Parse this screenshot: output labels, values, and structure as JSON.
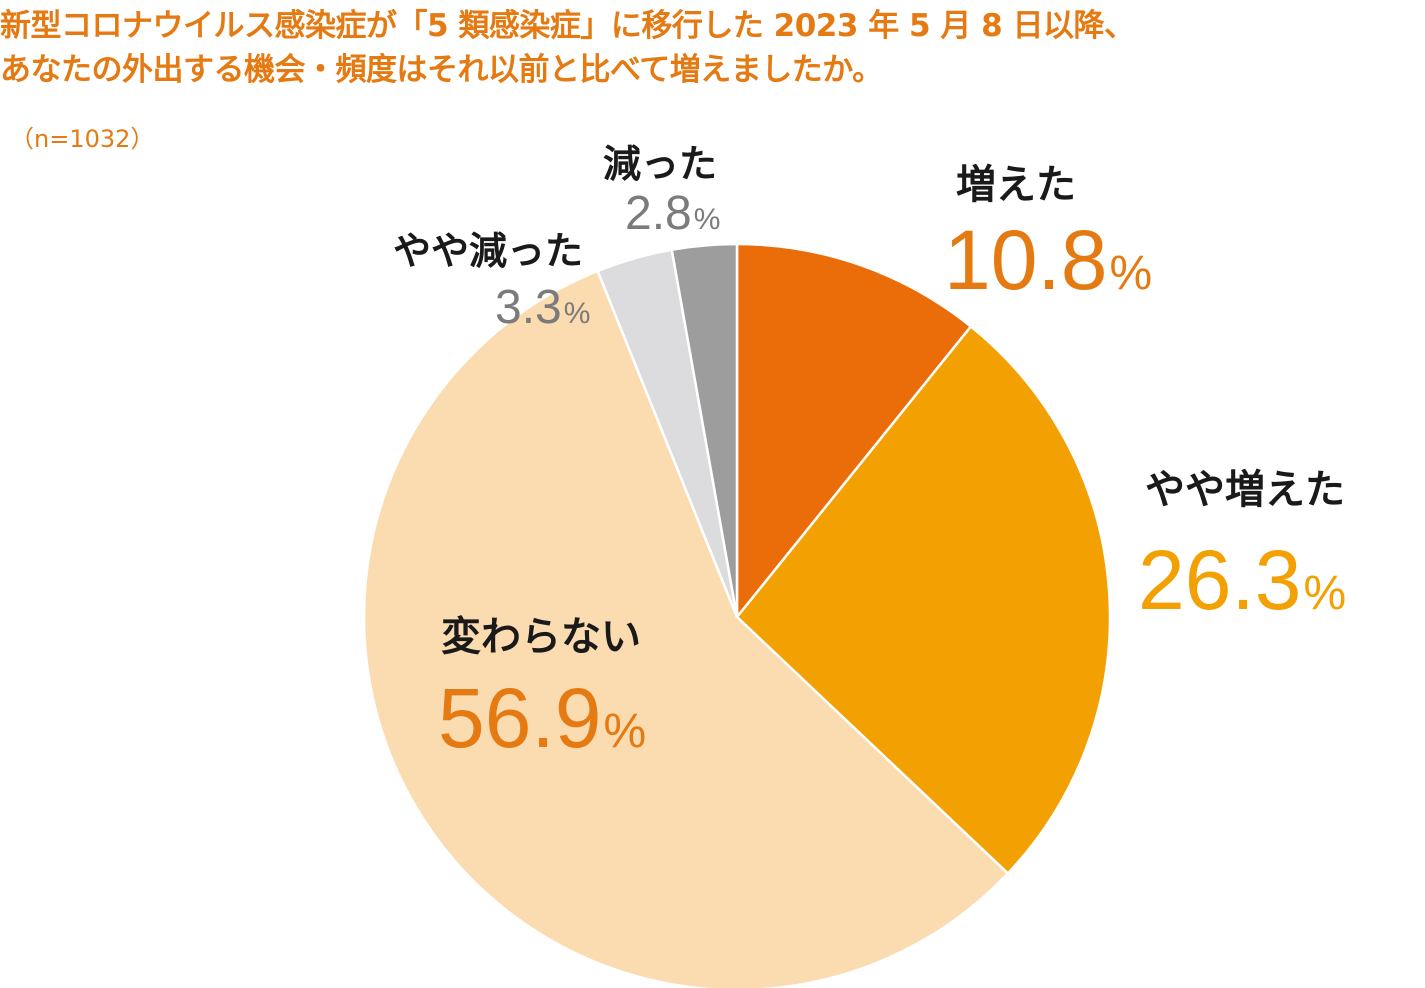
{
  "title_lines": [
    "新型コロナウイルス感染症が「5 類感染症」に移行した 2023 年 5 月 8 日以降、",
    "あなたの外出する機会・頻度はそれ以前と比べて増えましたか。"
  ],
  "sample_size": "（n=1032）",
  "chart_data": {
    "type": "pie",
    "title": "新型コロナウイルス感染症が「5 類感染症」に移行した 2023 年 5 月 8 日以降、あなたの外出する機会・頻度はそれ以前と比べて増えましたか。",
    "note": "（n=1032）",
    "unit": "%",
    "start": "12 o'clock",
    "direction": "clockwise",
    "slices": [
      {
        "label": "増えた",
        "value": 10.8,
        "value_text": "10.8",
        "color": "#eb6d0a",
        "label_color": "#e57a12"
      },
      {
        "label": "やや増えた",
        "value": 26.3,
        "value_text": "26.3",
        "color": "#f3a002",
        "label_color": "#f3a002"
      },
      {
        "label": "変わらない",
        "value": 56.9,
        "value_text": "56.9",
        "color": "#fbdbb0",
        "label_color": "#e57a12"
      },
      {
        "label": "やや減った",
        "value": 3.3,
        "value_text": "3.3",
        "color": "#dcdcde",
        "label_color": "#7b7b7b"
      },
      {
        "label": "減った",
        "value": 2.8,
        "value_text": "2.8",
        "color": "#9d9d9d",
        "label_color": "#7b7b7b"
      }
    ]
  }
}
